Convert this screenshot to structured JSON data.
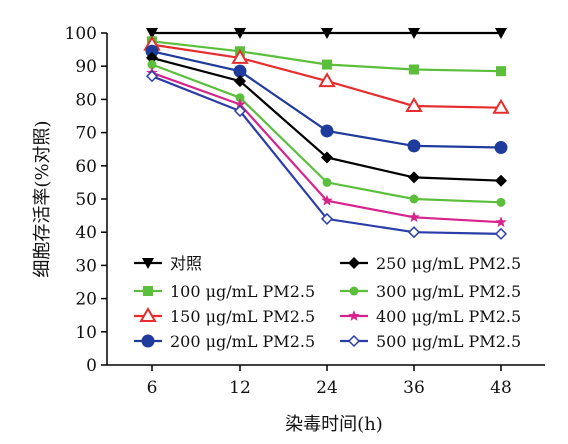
{
  "chart_data": {
    "type": "line",
    "x": [
      6,
      12,
      24,
      36,
      48
    ],
    "xlabel": "染毒时间(h)",
    "ylabel": "细胞存活率(%对照)",
    "ylim": [
      0,
      100
    ],
    "yticks": [
      0,
      10,
      20,
      30,
      40,
      50,
      60,
      70,
      80,
      90,
      100
    ],
    "grid": false,
    "legend_placement": "lower-center, two columns",
    "series": [
      {
        "name": "对照",
        "color": "#000000",
        "marker": "triangle-down",
        "values": [
          100,
          100,
          100,
          100,
          100
        ]
      },
      {
        "name": "100 μg/mL PM2.5",
        "color": "#5cbf3c",
        "marker": "square",
        "values": [
          97.5,
          94.5,
          90.5,
          89,
          88.5
        ]
      },
      {
        "name": "150 μg/mL PM2.5",
        "color": "#e62e2e",
        "marker": "triangle-up-open",
        "values": [
          96.5,
          92.5,
          85.5,
          78,
          77.5
        ]
      },
      {
        "name": "200 μg/mL PM2.5",
        "color": "#1f3c9c",
        "marker": "circle",
        "values": [
          94.5,
          88.5,
          70.5,
          66,
          65.5
        ]
      },
      {
        "name": "250 μg/mL PM2.5",
        "color": "#000000",
        "marker": "diamond",
        "values": [
          92.5,
          85.5,
          62.5,
          56.5,
          55.5
        ]
      },
      {
        "name": "300 μg/mL PM2.5",
        "color": "#5cbf3c",
        "marker": "circle-small",
        "values": [
          90.5,
          80.5,
          55,
          50,
          49
        ]
      },
      {
        "name": "400 μg/mL PM2.5",
        "color": "#d6248c",
        "marker": "star",
        "values": [
          88,
          78.5,
          49.5,
          44.5,
          43
        ]
      },
      {
        "name": "500 μg/mL PM2.5",
        "color": "#2b3ea8",
        "marker": "diamond-open",
        "values": [
          87,
          76.5,
          44,
          40,
          39.5
        ]
      }
    ],
    "legend_columns": [
      [
        "对照",
        "100 μg/mL PM2.5",
        "150 μg/mL PM2.5",
        "200 μg/mL PM2.5"
      ],
      [
        "250 μg/mL PM2.5",
        "300 μg/mL PM2.5",
        "400 μg/mL PM2.5",
        "500 μg/mL PM2.5"
      ]
    ]
  }
}
